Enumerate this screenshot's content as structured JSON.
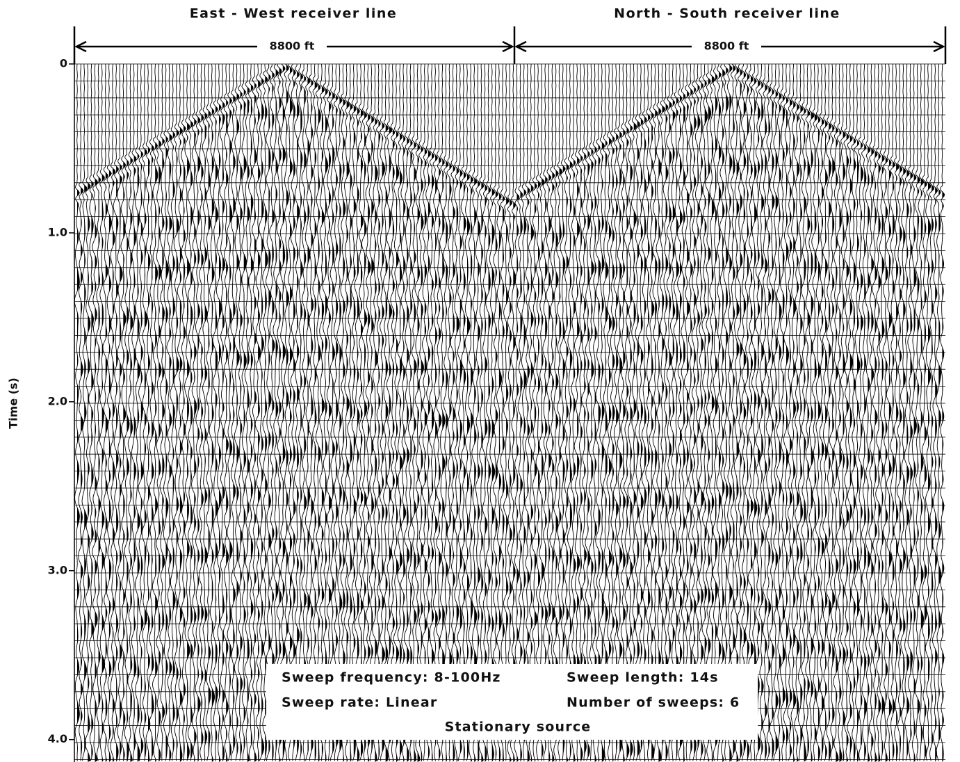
{
  "chart_data": {
    "type": "seismic",
    "panels": [
      {
        "title": "East - West receiver line",
        "span": "8800 ft"
      },
      {
        "title": "North - South receiver line",
        "span": "8800 ft"
      }
    ],
    "ylabel": "Time (s)",
    "ylim": [
      0,
      4.1
    ],
    "yticks": [
      0,
      {
        "value": 1,
        "label": "1.0"
      },
      {
        "value": 2,
        "label": "2.0"
      },
      {
        "value": 3,
        "label": "3.0"
      },
      {
        "value": 4,
        "label": "4.0"
      }
    ],
    "annotations": [
      "Sweep frequency: 8-100Hz",
      "Sweep length: 14s",
      "Sweep rate: Linear",
      "Number of sweeps: 6",
      "Stationary source"
    ]
  }
}
